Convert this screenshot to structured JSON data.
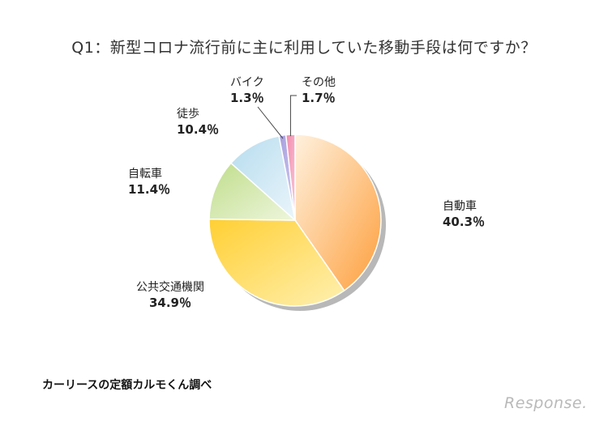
{
  "chart_data": {
    "type": "pie",
    "title": "Q1：新型コロナ流行前に主に利用していた移動手段は何ですか？",
    "slices": [
      {
        "label": "自動車",
        "value": 40.3,
        "display": "40.3％",
        "color": "#fdb35a"
      },
      {
        "label": "公共交通機関",
        "value": 34.9,
        "display": "34.9％",
        "color": "#ffd94a"
      },
      {
        "label": "自転車",
        "value": 11.4,
        "display": "11.4％",
        "color": "#cfe6a4"
      },
      {
        "label": "徒歩",
        "value": 10.4,
        "display": "10.4％",
        "color": "#c7e4f1"
      },
      {
        "label": "バイク",
        "value": 1.3,
        "display": "1.3％",
        "color": "#b5aee3"
      },
      {
        "label": "その他",
        "value": 1.7,
        "display": "1.7％",
        "color": "#f4a3bd"
      }
    ]
  },
  "source": "カーリースの定額カルモくん調べ",
  "logo": "Response."
}
